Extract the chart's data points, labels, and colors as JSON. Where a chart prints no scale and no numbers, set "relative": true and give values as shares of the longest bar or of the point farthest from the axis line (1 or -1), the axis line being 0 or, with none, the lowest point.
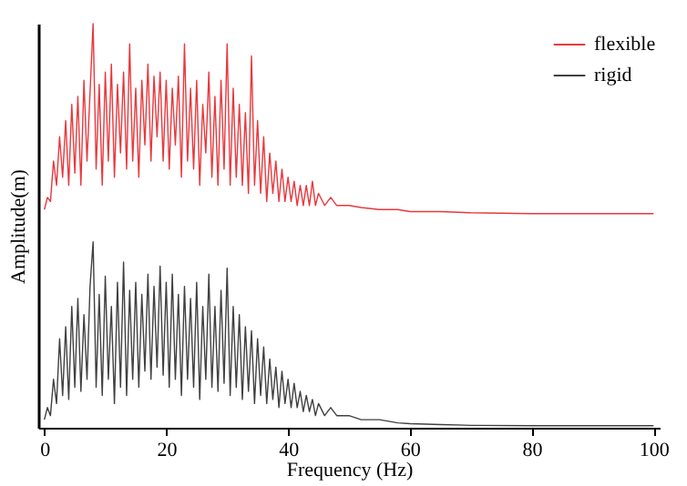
{
  "chart_data": {
    "type": "line",
    "relative": true,
    "xlabel": "Frequency (Hz)",
    "ylabel": "Amplitude(m)",
    "xlim": [
      -1,
      101
    ],
    "xticks": [
      0,
      20,
      40,
      60,
      80,
      100
    ],
    "legend": "top right",
    "tick_labels": "x",
    "x": [
      0,
      0.5,
      1,
      1.5,
      2,
      2.5,
      3,
      3.5,
      4,
      4.5,
      5,
      5.5,
      6,
      6.5,
      7,
      7.5,
      8,
      8.5,
      9,
      9.5,
      10,
      10.5,
      11,
      11.5,
      12,
      12.5,
      13,
      13.5,
      14,
      14.5,
      15,
      15.5,
      16,
      16.5,
      17,
      17.5,
      18,
      18.5,
      19,
      19.5,
      20,
      20.5,
      21,
      21.5,
      22,
      22.5,
      23,
      23.5,
      24,
      24.5,
      25,
      25.5,
      26,
      26.5,
      27,
      27.5,
      28,
      28.5,
      29,
      29.5,
      30,
      30.5,
      31,
      31.5,
      32,
      32.5,
      33,
      33.5,
      34,
      34.5,
      35,
      35.5,
      36,
      36.5,
      37,
      37.5,
      38,
      38.5,
      39,
      39.5,
      40,
      40.5,
      41,
      41.5,
      42,
      42.5,
      43,
      43.5,
      44,
      44.5,
      45,
      46,
      47,
      48,
      50,
      52,
      55,
      58,
      60,
      65,
      70,
      80,
      90,
      100
    ],
    "series": [
      {
        "name": "flexible",
        "color": "#e8383d",
        "values": [
          0.54,
          0.57,
          0.56,
          0.66,
          0.6,
          0.72,
          0.62,
          0.76,
          0.6,
          0.8,
          0.63,
          0.82,
          0.6,
          0.86,
          0.66,
          0.83,
          1.0,
          0.64,
          0.85,
          0.6,
          0.88,
          0.66,
          0.9,
          0.62,
          0.85,
          0.68,
          0.88,
          0.64,
          0.95,
          0.66,
          0.84,
          0.62,
          0.86,
          0.7,
          0.9,
          0.66,
          0.87,
          0.72,
          0.88,
          0.66,
          0.86,
          0.64,
          0.84,
          0.7,
          0.87,
          0.62,
          0.95,
          0.66,
          0.84,
          0.64,
          0.86,
          0.6,
          0.8,
          0.68,
          0.88,
          0.62,
          0.82,
          0.6,
          0.86,
          0.64,
          0.95,
          0.6,
          0.84,
          0.62,
          0.8,
          0.6,
          0.78,
          0.58,
          0.92,
          0.6,
          0.76,
          0.58,
          0.72,
          0.56,
          0.68,
          0.58,
          0.66,
          0.56,
          0.64,
          0.56,
          0.62,
          0.56,
          0.61,
          0.55,
          0.6,
          0.55,
          0.6,
          0.55,
          0.61,
          0.55,
          0.58,
          0.55,
          0.57,
          0.55,
          0.55,
          0.545,
          0.54,
          0.54,
          0.535,
          0.535,
          0.532,
          0.53,
          0.53,
          0.53
        ]
      },
      {
        "name": "rigid",
        "color": "#404040",
        "values": [
          0.02,
          0.05,
          0.03,
          0.12,
          0.06,
          0.22,
          0.08,
          0.25,
          0.07,
          0.3,
          0.1,
          0.32,
          0.09,
          0.28,
          0.12,
          0.35,
          0.46,
          0.1,
          0.33,
          0.08,
          0.375,
          0.12,
          0.3,
          0.06,
          0.36,
          0.1,
          0.41,
          0.08,
          0.34,
          0.12,
          0.36,
          0.1,
          0.33,
          0.14,
          0.38,
          0.12,
          0.35,
          0.15,
          0.4,
          0.13,
          0.36,
          0.1,
          0.38,
          0.12,
          0.33,
          0.08,
          0.35,
          0.12,
          0.32,
          0.1,
          0.36,
          0.07,
          0.3,
          0.12,
          0.38,
          0.1,
          0.3,
          0.09,
          0.34,
          0.11,
          0.395,
          0.08,
          0.3,
          0.1,
          0.28,
          0.07,
          0.25,
          0.09,
          0.24,
          0.06,
          0.22,
          0.08,
          0.2,
          0.06,
          0.17,
          0.07,
          0.15,
          0.05,
          0.14,
          0.06,
          0.12,
          0.05,
          0.11,
          0.05,
          0.09,
          0.04,
          0.08,
          0.04,
          0.07,
          0.03,
          0.06,
          0.03,
          0.05,
          0.03,
          0.03,
          0.02,
          0.02,
          0.012,
          0.01,
          0.008,
          0.006,
          0.005,
          0.005,
          0.005
        ]
      }
    ]
  }
}
